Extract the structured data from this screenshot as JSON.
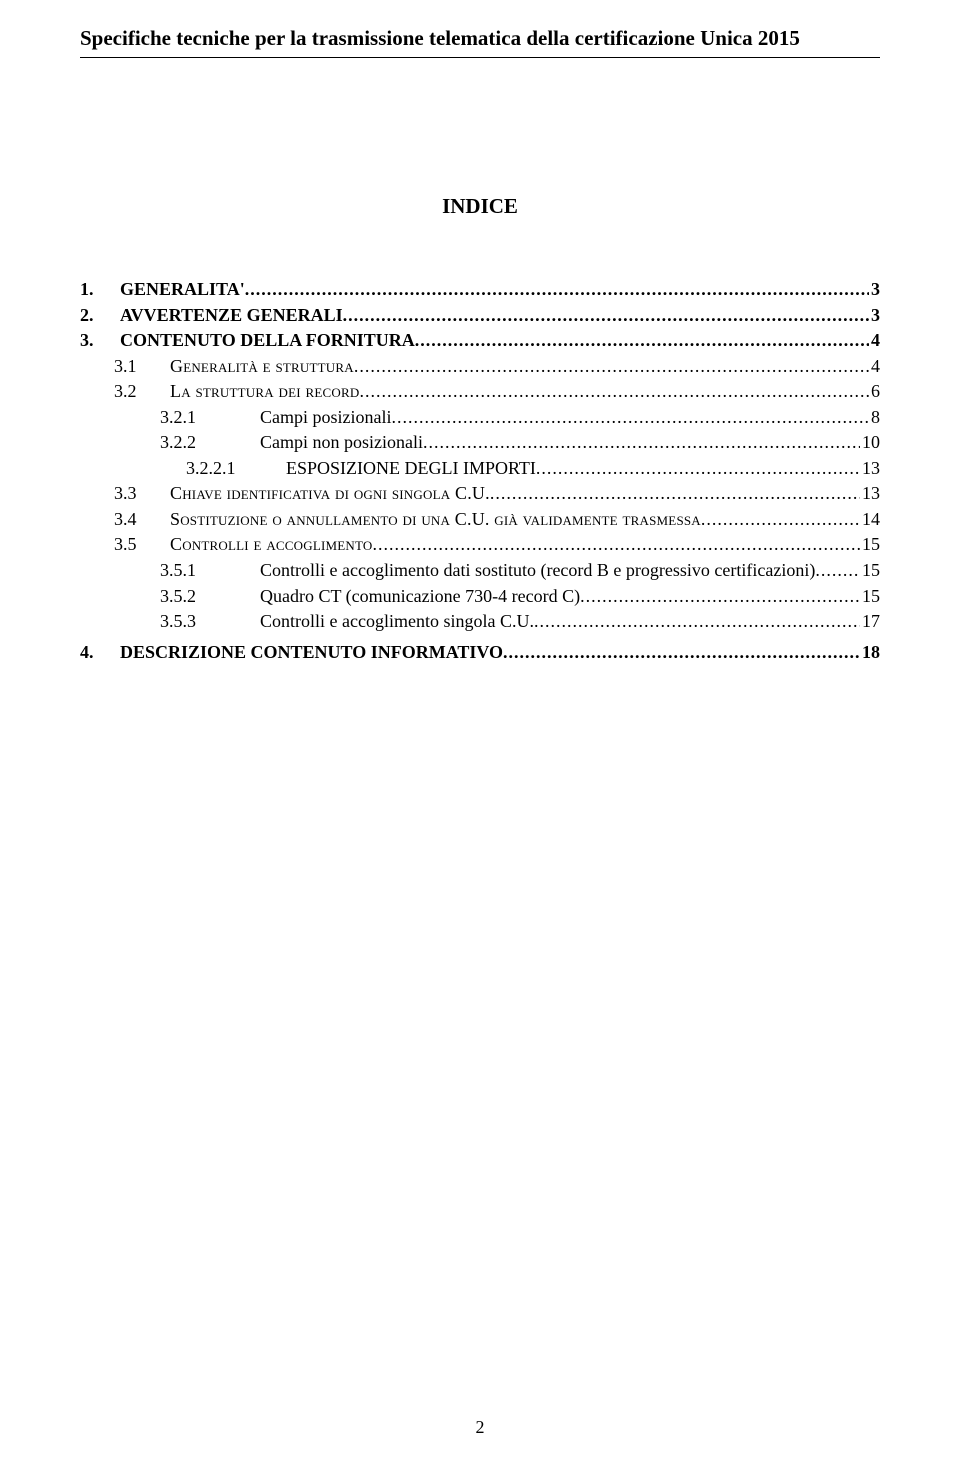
{
  "header": {
    "title": "Specifiche tecniche per la trasmissione telematica della certificazione Unica 2015"
  },
  "indice_label": "INDICE",
  "toc": [
    {
      "level": 1,
      "num": "1.",
      "label": "GENERALITA'",
      "page": "3",
      "style": "upper"
    },
    {
      "level": 1,
      "num": "2.",
      "label": "AVVERTENZE GENERALI",
      "page": "3",
      "style": "upper"
    },
    {
      "level": 1,
      "num": "3.",
      "label": "CONTENUTO DELLA FORNITURA",
      "page": "4",
      "style": "upper"
    },
    {
      "level": 2,
      "num": "3.1",
      "label": "Generalità e struttura",
      "page": "4",
      "style": "sc"
    },
    {
      "level": 2,
      "num": "3.2",
      "label": "La struttura dei record",
      "page": "6",
      "style": "sc"
    },
    {
      "level": 3,
      "num": "3.2.1",
      "label": "Campi posizionali",
      "page": "8",
      "style": "plain"
    },
    {
      "level": 3,
      "num": "3.2.2",
      "label": "Campi non posizionali",
      "page": "10",
      "style": "plain"
    },
    {
      "level": 3,
      "num": "3.2.2.1",
      "label": "ESPOSIZIONE DEGLI IMPORTI",
      "page": "13",
      "style": "upper-plain",
      "shift": true
    },
    {
      "level": 2,
      "num": "3.3",
      "label": "Chiave identificativa di ogni singola C.U.",
      "page": "13",
      "style": "sc"
    },
    {
      "level": 2,
      "num": "3.4",
      "label": "Sostituzione o annullamento di una C.U. già validamente trasmessa",
      "page": "14",
      "style": "sc"
    },
    {
      "level": 2,
      "num": "3.5",
      "label": "Controlli e accoglimento",
      "page": "15",
      "style": "sc"
    },
    {
      "level": 3,
      "num": "3.5.1",
      "label": "Controlli e accoglimento dati sostituto (record B e progressivo certificazioni)",
      "page": "15",
      "style": "plain"
    },
    {
      "level": 3,
      "num": "3.5.2",
      "label": "Quadro CT (comunicazione 730-4 record C)",
      "page": "15",
      "style": "plain"
    },
    {
      "level": 3,
      "num": "3.5.3",
      "label": "Controlli e accoglimento singola C.U. ",
      "page": "17",
      "style": "plain"
    },
    {
      "level": 1,
      "num": "4.",
      "label": "DESCRIZIONE CONTENUTO INFORMATIVO",
      "page": "18",
      "style": "upper",
      "gap_before": true
    }
  ],
  "page_number": "2",
  "colors": {
    "text": "#000000",
    "background": "#ffffff",
    "rule": "#000000"
  },
  "typography": {
    "base_font": "Times New Roman",
    "header_fontsize_pt": 16,
    "indice_fontsize_pt": 16,
    "toc_fontsize_pt": 13.5,
    "line_height": 1.42
  }
}
